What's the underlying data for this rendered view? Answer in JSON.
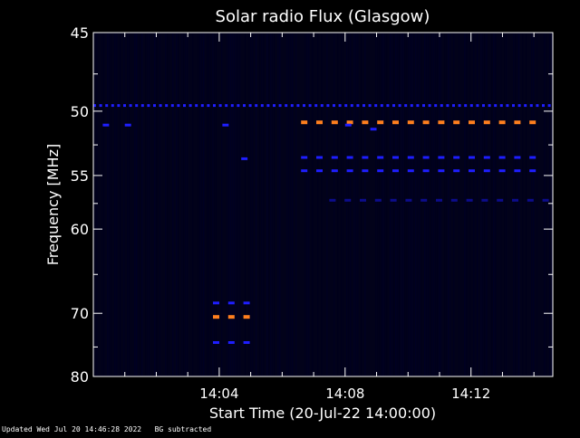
{
  "footer": {
    "updated": "Updated Wed Jul 20 14:46:28 2022",
    "note": "BG subtracted"
  },
  "chart_data": {
    "type": "heatmap",
    "title": "Solar radio Flux (Glasgow)",
    "xlabel": "Start Time (20-Jul-22 14:00:00)",
    "ylabel": "Frequency [MHz]",
    "x_unit": "minutes after 14:00:00",
    "xlim": [
      0,
      14.6
    ],
    "ylim": [
      45,
      80
    ],
    "y_scale": "reciprocal",
    "x_ticks": [
      {
        "value": 4,
        "label": "14:04"
      },
      {
        "value": 8,
        "label": "14:08"
      },
      {
        "value": 12,
        "label": "14:12"
      }
    ],
    "x_minor_step": 1,
    "y_ticks": [
      {
        "value": 45,
        "label": "45"
      },
      {
        "value": 50,
        "label": "50"
      },
      {
        "value": 55,
        "label": "55"
      },
      {
        "value": 60,
        "label": "60"
      },
      {
        "value": 70,
        "label": "70"
      },
      {
        "value": 80,
        "label": "80"
      }
    ],
    "y_minor": [
      47.5,
      52.5,
      57.5,
      65,
      75
    ],
    "background_color": "#02021a",
    "colors": {
      "strong": "#ff7f1e",
      "medium": "#1e1eff",
      "weak": "#0c0c8c",
      "frame": "#ffffff"
    },
    "features": [
      {
        "name": "continuous-interference",
        "freq": 49.6,
        "t_start": 0,
        "t_end": 14.6,
        "level": "medium",
        "dashed": true
      },
      {
        "name": "band-50.8",
        "freq": 50.8,
        "t_start": 6.6,
        "t_end": 14.2,
        "level": "strong",
        "dashed": true
      },
      {
        "name": "band-53.5",
        "freq": 53.5,
        "t_start": 6.6,
        "t_end": 14.2,
        "level": "medium",
        "dashed": true
      },
      {
        "name": "band-54.6",
        "freq": 54.6,
        "t_start": 6.6,
        "t_end": 14.2,
        "level": "medium",
        "dashed": true
      },
      {
        "name": "band-57.2",
        "freq": 57.2,
        "t_start": 7.5,
        "t_end": 14.6,
        "level": "weak",
        "dashed": true
      },
      {
        "name": "burst-68.6",
        "freq": 68.6,
        "t_start": 3.8,
        "t_end": 5.0,
        "level": "medium",
        "dashed": true
      },
      {
        "name": "burst-70.5",
        "freq": 70.5,
        "t_start": 3.8,
        "t_end": 5.0,
        "level": "strong",
        "dashed": true
      },
      {
        "name": "burst-74.3",
        "freq": 74.3,
        "t_start": 3.8,
        "t_end": 5.0,
        "level": "medium",
        "dashed": true
      },
      {
        "name": "spot-51-a",
        "freq": 51.0,
        "t_start": 0.3,
        "t_end": 0.5,
        "level": "medium",
        "dashed": false
      },
      {
        "name": "spot-51-b",
        "freq": 51.0,
        "t_start": 1.0,
        "t_end": 1.2,
        "level": "medium",
        "dashed": false
      },
      {
        "name": "spot-51-c",
        "freq": 51.0,
        "t_start": 4.1,
        "t_end": 4.3,
        "level": "medium",
        "dashed": false
      },
      {
        "name": "spot-53.6",
        "freq": 53.6,
        "t_start": 4.7,
        "t_end": 4.9,
        "level": "medium",
        "dashed": false
      },
      {
        "name": "spot-51-d",
        "freq": 51.0,
        "t_start": 8.0,
        "t_end": 8.2,
        "level": "medium",
        "dashed": false
      },
      {
        "name": "spot-51.3",
        "freq": 51.3,
        "t_start": 8.8,
        "t_end": 9.0,
        "level": "medium",
        "dashed": false
      }
    ]
  }
}
